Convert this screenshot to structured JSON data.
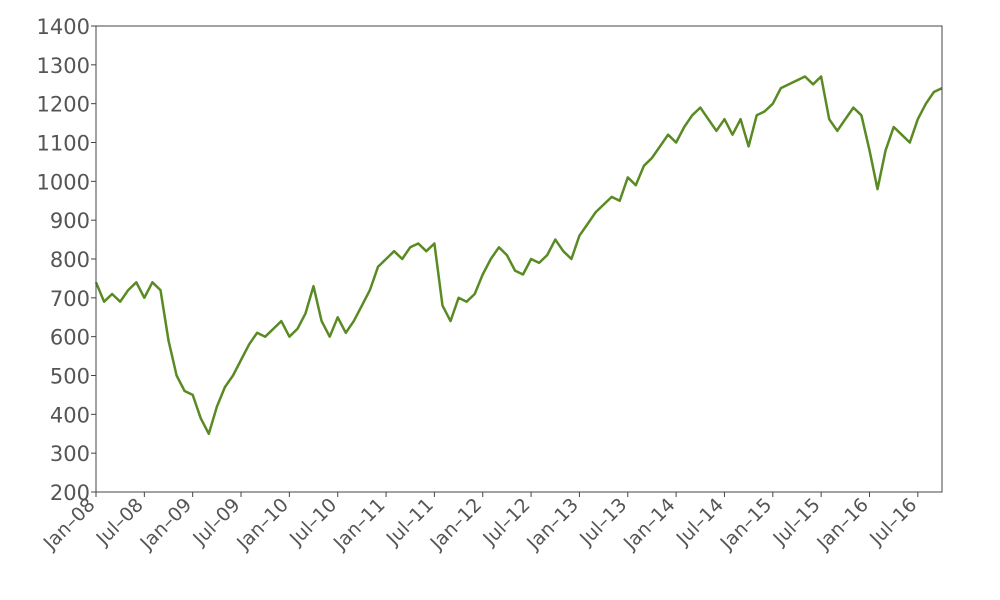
{
  "chart_data": {
    "type": "line",
    "title": "",
    "xlabel": "",
    "ylabel": "",
    "xlim": [
      "2008-01",
      "2016-10"
    ],
    "ylim": [
      200,
      1400
    ],
    "grid": false,
    "legend": "none",
    "line_color": "#5a8a23",
    "y_ticks": [
      200,
      300,
      400,
      500,
      600,
      700,
      800,
      900,
      1000,
      1100,
      1200,
      1300,
      1400
    ],
    "x_ticks": [
      {
        "date": "2008-01",
        "label": "Jan–08"
      },
      {
        "date": "2008-07",
        "label": "Jul–08"
      },
      {
        "date": "2009-01",
        "label": "Jan–09"
      },
      {
        "date": "2009-07",
        "label": "Jul–09"
      },
      {
        "date": "2010-01",
        "label": "Jan–10"
      },
      {
        "date": "2010-07",
        "label": "Jul–10"
      },
      {
        "date": "2011-01",
        "label": "Jan–11"
      },
      {
        "date": "2011-07",
        "label": "Jul–11"
      },
      {
        "date": "2012-01",
        "label": "Jan–12"
      },
      {
        "date": "2012-07",
        "label": "Jul–12"
      },
      {
        "date": "2013-01",
        "label": "Jan–13"
      },
      {
        "date": "2013-07",
        "label": "Jul–13"
      },
      {
        "date": "2014-01",
        "label": "Jan–14"
      },
      {
        "date": "2014-07",
        "label": "Jul–14"
      },
      {
        "date": "2015-01",
        "label": "Jan–15"
      },
      {
        "date": "2015-07",
        "label": "Jul–15"
      },
      {
        "date": "2016-01",
        "label": "Jan–16"
      },
      {
        "date": "2016-07",
        "label": "Jul–16"
      }
    ],
    "series": [
      {
        "x": [
          "2008-01",
          "2008-02",
          "2008-03",
          "2008-04",
          "2008-05",
          "2008-06",
          "2008-07",
          "2008-08",
          "2008-09",
          "2008-10",
          "2008-11",
          "2008-12",
          "2009-01",
          "2009-02",
          "2009-03",
          "2009-04",
          "2009-05",
          "2009-06",
          "2009-07",
          "2009-08",
          "2009-09",
          "2009-10",
          "2009-11",
          "2009-12",
          "2010-01",
          "2010-02",
          "2010-03",
          "2010-04",
          "2010-05",
          "2010-06",
          "2010-07",
          "2010-08",
          "2010-09",
          "2010-10",
          "2010-11",
          "2010-12",
          "2011-01",
          "2011-02",
          "2011-03",
          "2011-04",
          "2011-05",
          "2011-06",
          "2011-07",
          "2011-08",
          "2011-09",
          "2011-10",
          "2011-11",
          "2011-12",
          "2012-01",
          "2012-02",
          "2012-03",
          "2012-04",
          "2012-05",
          "2012-06",
          "2012-07",
          "2012-08",
          "2012-09",
          "2012-10",
          "2012-11",
          "2012-12",
          "2013-01",
          "2013-02",
          "2013-03",
          "2013-04",
          "2013-05",
          "2013-06",
          "2013-07",
          "2013-08",
          "2013-09",
          "2013-10",
          "2013-11",
          "2013-12",
          "2014-01",
          "2014-02",
          "2014-03",
          "2014-04",
          "2014-05",
          "2014-06",
          "2014-07",
          "2014-08",
          "2014-09",
          "2014-10",
          "2014-11",
          "2014-12",
          "2015-01",
          "2015-02",
          "2015-03",
          "2015-04",
          "2015-05",
          "2015-06",
          "2015-07",
          "2015-08",
          "2015-09",
          "2015-10",
          "2015-11",
          "2015-12",
          "2016-01",
          "2016-02",
          "2016-03",
          "2016-04",
          "2016-05",
          "2016-06",
          "2016-07",
          "2016-08",
          "2016-09",
          "2016-10"
        ],
        "values": [
          740,
          690,
          710,
          690,
          720,
          740,
          700,
          740,
          720,
          590,
          500,
          460,
          450,
          390,
          350,
          420,
          470,
          500,
          540,
          580,
          610,
          600,
          620,
          640,
          600,
          620,
          660,
          730,
          640,
          600,
          650,
          610,
          640,
          680,
          720,
          780,
          800,
          820,
          800,
          830,
          840,
          820,
          840,
          680,
          640,
          700,
          690,
          710,
          760,
          800,
          830,
          810,
          770,
          760,
          800,
          790,
          810,
          850,
          820,
          800,
          860,
          890,
          920,
          940,
          960,
          950,
          1010,
          990,
          1040,
          1060,
          1090,
          1120,
          1100,
          1140,
          1170,
          1190,
          1160,
          1130,
          1160,
          1120,
          1160,
          1090,
          1170,
          1180,
          1200,
          1240,
          1250,
          1260,
          1270,
          1250,
          1270,
          1160,
          1130,
          1160,
          1190,
          1170,
          1080,
          980,
          1080,
          1140,
          1120,
          1100,
          1160,
          1200,
          1230,
          1240
        ]
      }
    ]
  }
}
